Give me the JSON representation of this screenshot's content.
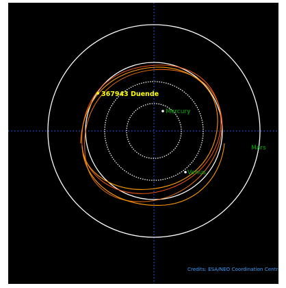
{
  "diagram": {
    "asteroid": {
      "label": "367943 Duende",
      "color": "#ffff00"
    },
    "planets": [
      {
        "name": "Mercury",
        "color": "#00b000"
      },
      {
        "name": "Venus",
        "color": "#00b000"
      },
      {
        "name": "Mars",
        "color": "#00b000"
      }
    ],
    "credits": {
      "text": "Credits: ESA/NEO Coordination Centre",
      "color": "#3aa0ff"
    },
    "colors": {
      "background": "#000000",
      "orbit": "#ffffff",
      "axes": "#2a5bff",
      "trail_orange": "#ff9a00",
      "trail_red": "#ff5a1a"
    }
  }
}
